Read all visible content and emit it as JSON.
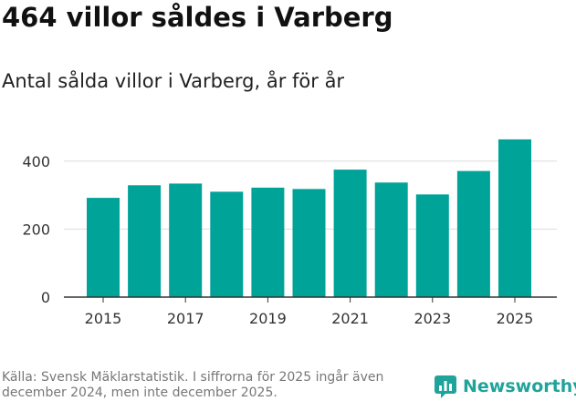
{
  "header": {
    "title": "464 villor såldes i Varberg",
    "subtitle": "Antal sålda villor i Varberg, år för år"
  },
  "footer": {
    "source": "Källa: Svensk Mäklarstatistik. I siffrorna för 2025 ingår även december 2024, men inte december 2025.",
    "brand_name": "Newsworthy",
    "brand_icon": "newsworthy-logo-icon"
  },
  "colors": {
    "bar": "#00a398",
    "brand": "#20a39a",
    "grid": "#dddddd",
    "axis": "#333333"
  },
  "chart_data": {
    "type": "bar",
    "title": "Antal sålda villor i Varberg, år för år",
    "xlabel": "",
    "ylabel": "",
    "categories": [
      "2015",
      "2016",
      "2017",
      "2018",
      "2019",
      "2020",
      "2021",
      "2022",
      "2023",
      "2024",
      "2025"
    ],
    "values": [
      292,
      329,
      334,
      310,
      322,
      318,
      375,
      337,
      302,
      371,
      464
    ],
    "x_tick_labels": [
      "2015",
      "2017",
      "2019",
      "2021",
      "2023",
      "2025"
    ],
    "y_ticks": [
      0,
      200,
      400
    ],
    "y_tick_labels": [
      "0",
      "200",
      "400"
    ],
    "ylim": [
      0,
      500
    ],
    "grid": true,
    "legend": "none"
  }
}
